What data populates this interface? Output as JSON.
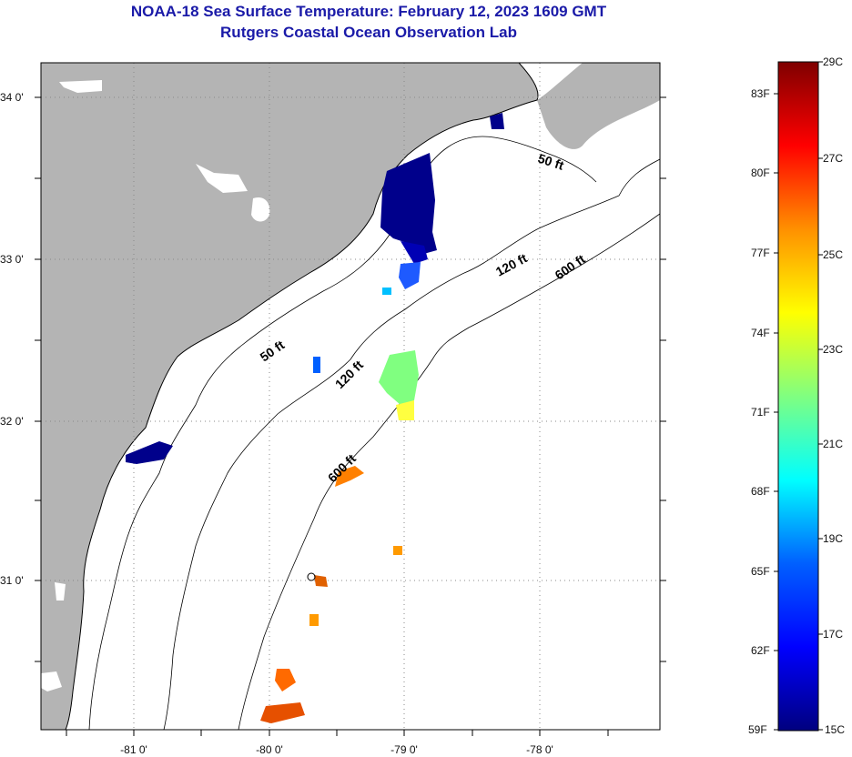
{
  "title": "NOAA-18 Sea Surface Temperature:  February 12, 2023 1609 GMT",
  "subtitle": "Rutgers Coastal Ocean Observation Lab",
  "map": {
    "lat_labels": [
      "34 0'",
      "33 0'",
      "32 0'",
      "31 0'"
    ],
    "lon_labels": [
      "-81 0'",
      "-80 0'",
      "-79 0'",
      "-78 0'"
    ],
    "contour_labels": {
      "c50_north": "50 ft",
      "c50_south": "50 ft",
      "c120_north": "120 ft",
      "c120_south": "120 ft",
      "c600_north": "600 ft",
      "c600_south": "600 ft"
    }
  },
  "colorbar": {
    "fahrenheit": [
      "83F",
      "80F",
      "77F",
      "74F",
      "71F",
      "68F",
      "65F",
      "62F",
      "59F"
    ],
    "celsius": [
      "29C",
      "27C",
      "25C",
      "23C",
      "21C",
      "19C",
      "17C",
      "15C"
    ],
    "colors": [
      "#00007f",
      "#0000ff",
      "#0080ff",
      "#00ffff",
      "#80ff80",
      "#ffff00",
      "#ff8000",
      "#ff0000",
      "#7f0000"
    ]
  },
  "colors": {
    "land": "#b4b4b4",
    "title": "#1a1aa8"
  }
}
